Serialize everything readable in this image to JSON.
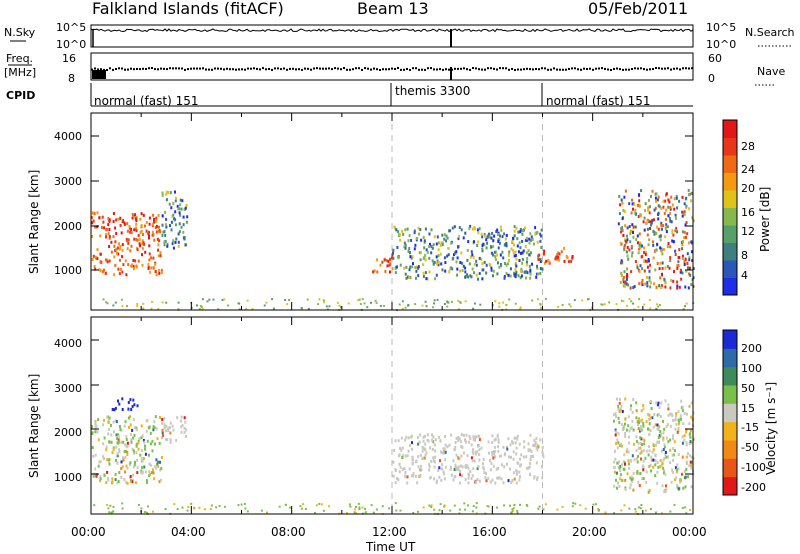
{
  "header": {
    "station": "Falkland Islands (fitACF)",
    "beam": "Beam 13",
    "date": "05/Feb/2011"
  },
  "summary_panels": {
    "nsky": {
      "label": "N.Sky",
      "ticks": [
        "10^5",
        "10^0"
      ]
    },
    "nsearch": {
      "label": "N.Search",
      "ticks": [
        "10^5",
        "10^0"
      ]
    },
    "freq": {
      "label_line1": "Freq.",
      "label_line2": "[MHz]",
      "ticks": [
        "16",
        "8"
      ]
    },
    "nave": {
      "label": "Nave",
      "ticks": [
        "60",
        "0"
      ]
    },
    "cpid": {
      "label": "CPID",
      "segments": [
        {
          "name": "normal (fast) 151",
          "start_hour": 0,
          "end_hour": 12
        },
        {
          "name": "themis 3300",
          "start_hour": 12,
          "end_hour": 18
        },
        {
          "name": "normal (fast) 151",
          "start_hour": 18,
          "end_hour": 24
        }
      ]
    }
  },
  "axes": {
    "xlabel": "Time UT",
    "xticks": [
      "00:00",
      "04:00",
      "08:00",
      "12:00",
      "16:00",
      "20:00",
      "00:00"
    ],
    "ylabel": "Slant Range [km]",
    "yticks": [
      "1000",
      "2000",
      "3000",
      "4000"
    ]
  },
  "colorbars": {
    "power": {
      "label": "Power [dB]",
      "ticks": [
        "4",
        "8",
        "12",
        "16",
        "20",
        "24",
        "28"
      ],
      "colors": [
        "#1f2ee6",
        "#2b57b8",
        "#3f7f7f",
        "#57a06a",
        "#86b84f",
        "#e0c21a",
        "#f29a12",
        "#ef6a12",
        "#e8361a",
        "#e01818"
      ]
    },
    "velocity": {
      "label": "Velocity [m s⁻¹]",
      "ticks": [
        "200",
        "100",
        "50",
        "15",
        "-15",
        "-50",
        "-100",
        "-200"
      ],
      "colors": [
        "#1a2bd6",
        "#2d6aa8",
        "#3f8a5a",
        "#79c04a",
        "#c9c9c0",
        "#f2b21c",
        "#f08a14",
        "#e8561a",
        "#e01818"
      ]
    }
  },
  "chart_data": [
    {
      "type": "heatmap",
      "title": "Power",
      "x_range_hours": [
        0,
        24
      ],
      "y_range_km": [
        180,
        4600
      ],
      "regions": [
        {
          "t0": 0.0,
          "t1": 2.8,
          "r0": 1000,
          "r1": 2400,
          "level": "high"
        },
        {
          "t0": 2.8,
          "t1": 3.8,
          "r0": 1600,
          "r1": 2900,
          "level": "medium"
        },
        {
          "t0": 11.2,
          "t1": 12.0,
          "r0": 1050,
          "r1": 1500,
          "level": "high"
        },
        {
          "t0": 12.0,
          "t1": 18.0,
          "r0": 900,
          "r1": 2100,
          "level": "medium"
        },
        {
          "t0": 17.8,
          "t1": 19.2,
          "r0": 1250,
          "r1": 1600,
          "level": "high"
        },
        {
          "t0": 21.0,
          "t1": 24.0,
          "r0": 700,
          "r1": 2900,
          "level": "mixed"
        }
      ]
    },
    {
      "type": "heatmap",
      "title": "Velocity",
      "x_range_hours": [
        0,
        24
      ],
      "y_range_km": [
        180,
        4600
      ],
      "regions": [
        {
          "t0": 0.0,
          "t1": 2.8,
          "r0": 900,
          "r1": 2400,
          "level": "mixed"
        },
        {
          "t0": 0.8,
          "t1": 1.9,
          "r0": 2550,
          "r1": 2800,
          "level": "positive"
        },
        {
          "t0": 2.8,
          "t1": 3.8,
          "r0": 1800,
          "r1": 2400,
          "level": "near-zero"
        },
        {
          "t0": 12.0,
          "t1": 18.0,
          "r0": 900,
          "r1": 2000,
          "level": "near-zero"
        },
        {
          "t0": 20.8,
          "t1": 24.0,
          "r0": 700,
          "r1": 2800,
          "level": "mixed"
        }
      ]
    }
  ]
}
